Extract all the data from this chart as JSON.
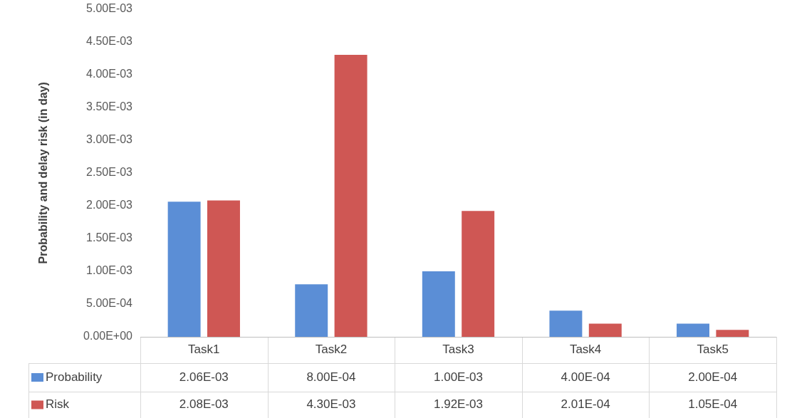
{
  "chart_data": {
    "type": "bar",
    "ylabel": "Probability and delay risk (in day)",
    "categories": [
      "Task1",
      "Task2",
      "Task3",
      "Task4",
      "Task5"
    ],
    "series": [
      {
        "name": "Probability",
        "color": "#5b8ed6",
        "values": [
          0.00206,
          0.0008,
          0.001,
          0.0004,
          0.0002
        ],
        "value_labels": [
          "2.06E-03",
          "8.00E-04",
          "1.00E-03",
          "4.00E-04",
          "2.00E-04"
        ]
      },
      {
        "name": "Risk",
        "color": "#cf5754",
        "values": [
          0.00208,
          0.0043,
          0.00192,
          0.000201,
          0.000105
        ],
        "value_labels": [
          "2.08E-03",
          "4.30E-03",
          "1.92E-03",
          "2.01E-04",
          "1.05E-04"
        ]
      }
    ],
    "ylim": [
      0,
      0.005
    ],
    "yticks": [
      {
        "value": 0,
        "label": "0.00E+00"
      },
      {
        "value": 0.0005,
        "label": "5.00E-04"
      },
      {
        "value": 0.001,
        "label": "1.00E-03"
      },
      {
        "value": 0.0015,
        "label": "1.50E-03"
      },
      {
        "value": 0.002,
        "label": "2.00E-03"
      },
      {
        "value": 0.0025,
        "label": "2.50E-03"
      },
      {
        "value": 0.003,
        "label": "3.00E-03"
      },
      {
        "value": 0.0035,
        "label": "3.50E-03"
      },
      {
        "value": 0.004,
        "label": "4.00E-03"
      },
      {
        "value": 0.0045,
        "label": "4.50E-03"
      },
      {
        "value": 0.005,
        "label": "5.00E-03"
      }
    ],
    "legend": "bottom"
  }
}
